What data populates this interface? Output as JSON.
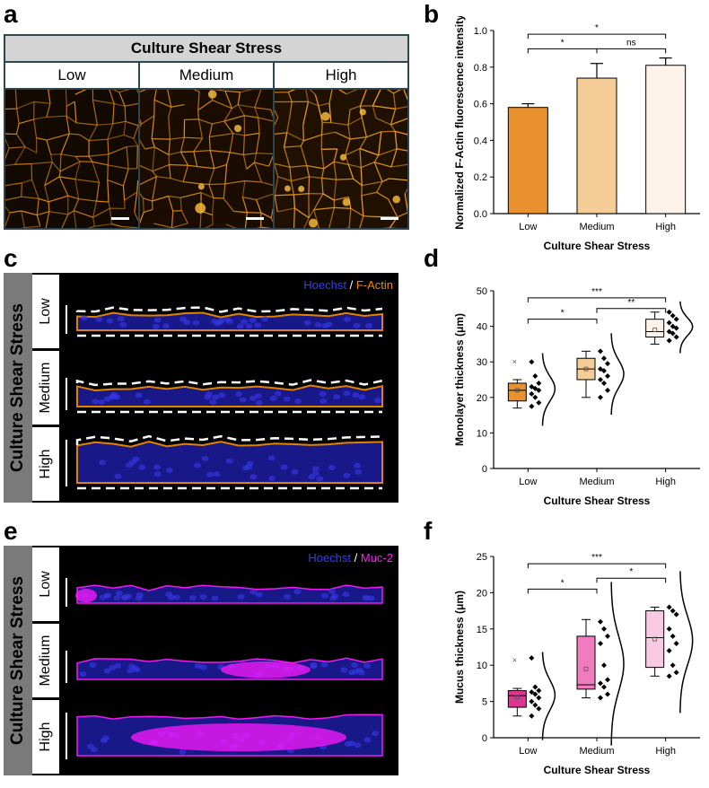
{
  "panels": {
    "a": {
      "letter": "a",
      "header": "Culture Shear Stress",
      "columns": [
        "Low",
        "Medium",
        "High"
      ]
    },
    "b": {
      "letter": "b"
    },
    "c": {
      "letter": "c",
      "side_title": "Culture Shear Stress",
      "rows": [
        "Low",
        "Medium",
        "High"
      ],
      "legend_a": "Hoechst",
      "legend_sep": " / ",
      "legend_b": "F-Actin",
      "colors": {
        "nuclei": "#2b2bd8",
        "stain": "#f08a00"
      }
    },
    "d": {
      "letter": "d"
    },
    "e": {
      "letter": "e",
      "side_title": "Culture Shear Stress",
      "rows": [
        "Low",
        "Medium",
        "High"
      ],
      "legend_a": "Hoechst",
      "legend_sep": " / ",
      "legend_b": "Muc-2",
      "colors": {
        "nuclei": "#2b2bd8",
        "stain": "#ff1aff"
      }
    },
    "f": {
      "letter": "f"
    }
  },
  "chart_data": [
    {
      "id": "b",
      "type": "bar",
      "categories": [
        "Low",
        "Medium",
        "High"
      ],
      "values": [
        0.58,
        0.74,
        0.81
      ],
      "errors": [
        0.02,
        0.08,
        0.04
      ],
      "colors": [
        "#e8912e",
        "#f5cd96",
        "#fdf3ea"
      ],
      "ylim": [
        0.0,
        1.0
      ],
      "yticks": [
        "0.0",
        "0.2",
        "0.4",
        "0.6",
        "0.8",
        "1.0"
      ],
      "ylabel": "Normalized F-Actin fluorescence intensity",
      "xlabel": "Culture Shear Stress",
      "significance": [
        {
          "from": 0,
          "to": 2,
          "label": "*",
          "level": 0.98
        },
        {
          "from": 0,
          "to": 1,
          "label": "*",
          "level": 0.9
        },
        {
          "from": 1,
          "to": 2,
          "label": "ns",
          "level": 0.9
        }
      ]
    },
    {
      "id": "d",
      "type": "box",
      "categories": [
        "Low",
        "Medium",
        "High"
      ],
      "colors": [
        "#e8912e",
        "#f5cd96",
        "#fdf3ea"
      ],
      "boxes": [
        {
          "q1": 19,
          "median": 22,
          "q3": 24,
          "whisker_low": 17,
          "whisker_high": 25,
          "mean": 22,
          "outlier": 30
        },
        {
          "q1": 25,
          "median": 28,
          "q3": 31,
          "whisker_low": 20,
          "whisker_high": 33,
          "mean": 28
        },
        {
          "q1": 37,
          "median": 38.5,
          "q3": 42,
          "whisker_low": 35,
          "whisker_high": 44,
          "mean": 39
        }
      ],
      "points": [
        [
          30,
          26,
          24,
          23,
          22.5,
          22,
          21,
          20,
          18.5,
          17.5
        ],
        [
          33,
          31,
          29.5,
          28,
          27.5,
          26,
          25,
          24,
          22,
          20
        ],
        [
          44,
          43,
          42,
          41,
          40,
          39.5,
          38.5,
          38,
          37,
          36
        ]
      ],
      "ylim": [
        0,
        50
      ],
      "yticks": [
        "0",
        "10",
        "20",
        "30",
        "40",
        "50"
      ],
      "ylabel": "Monolayer thickness (μm)",
      "xlabel": "Culture Shear Stress",
      "significance": [
        {
          "from": 0,
          "to": 2,
          "label": "***",
          "level": 48
        },
        {
          "from": 0,
          "to": 1,
          "label": "*",
          "level": 42
        },
        {
          "from": 1,
          "to": 2,
          "label": "**",
          "level": 45
        }
      ]
    },
    {
      "id": "f",
      "type": "box",
      "categories": [
        "Low",
        "Medium",
        "High"
      ],
      "colors": [
        "#dc3592",
        "#f07cbf",
        "#f7c9e3"
      ],
      "boxes": [
        {
          "q1": 4.2,
          "median": 5.8,
          "q3": 6.5,
          "whisker_low": 3.0,
          "whisker_high": 6.8,
          "mean": 5.6,
          "outlier": 10.7
        },
        {
          "q1": 6.7,
          "median": 7.3,
          "q3": 14.0,
          "whisker_low": 5.5,
          "whisker_high": 16.3,
          "mean": 9.5
        },
        {
          "q1": 9.7,
          "median": 13.8,
          "q3": 17.5,
          "whisker_low": 8.5,
          "whisker_high": 18.0,
          "mean": 13.6
        }
      ],
      "points": [
        [
          11,
          7,
          6.5,
          6.3,
          6,
          5.5,
          5,
          4.5,
          4,
          3
        ],
        [
          16,
          15,
          14,
          13,
          10,
          8,
          7.5,
          7,
          6,
          5.5
        ],
        [
          18,
          17.5,
          17,
          15,
          14,
          13,
          12,
          10,
          9,
          8.5
        ]
      ],
      "ylim": [
        0,
        25
      ],
      "yticks": [
        "0",
        "5",
        "10",
        "15",
        "20",
        "25"
      ],
      "ylabel": "Mucus thickness (μm)",
      "xlabel": "Culture Shear Stress",
      "significance": [
        {
          "from": 0,
          "to": 2,
          "label": "***",
          "level": 24
        },
        {
          "from": 0,
          "to": 1,
          "label": "*",
          "level": 20.5
        },
        {
          "from": 1,
          "to": 2,
          "label": "*",
          "level": 22
        }
      ]
    }
  ]
}
